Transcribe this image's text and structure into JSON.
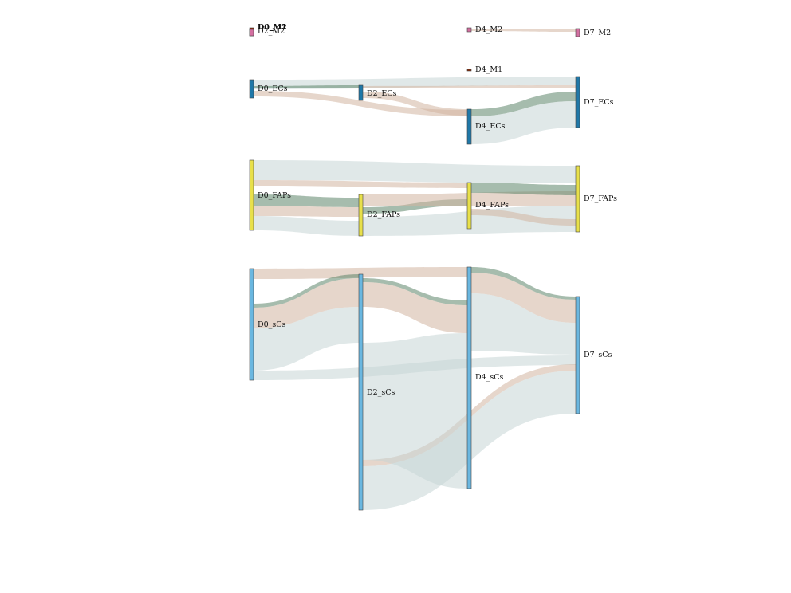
{
  "diagram": {
    "type": "sankey",
    "colors": {
      "M2": "#d46fa1",
      "M1": "#8b2500",
      "ECs": "#1f78a8",
      "FAPs": "#e8e04a",
      "sCs": "#6ab7e0",
      "flow_gray": "#c6d6d6",
      "flow_tan": "#d2b4a1",
      "flow_green": "#5d8569"
    },
    "nodes": [
      {
        "id": "D0_M1",
        "label": "D0_M1",
        "group": "M1"
      },
      {
        "id": "D0_M2",
        "label": "D0_M2",
        "group": "M2"
      },
      {
        "id": "D2_M2",
        "label": "D2_M2",
        "group": "M2"
      },
      {
        "id": "D4_M2",
        "label": "D4_M2",
        "group": "M2"
      },
      {
        "id": "D7_M2",
        "label": "D7_M2",
        "group": "M2"
      },
      {
        "id": "D4_M1",
        "label": "D4_M1",
        "group": "M1"
      },
      {
        "id": "D0_ECs",
        "label": "D0_ECs",
        "group": "ECs"
      },
      {
        "id": "D2_ECs",
        "label": "D2_ECs",
        "group": "ECs"
      },
      {
        "id": "D4_ECs",
        "label": "D4_ECs",
        "group": "ECs"
      },
      {
        "id": "D7_ECs",
        "label": "D7_ECs",
        "group": "ECs"
      },
      {
        "id": "D0_FAPs",
        "label": "D0_FAPs",
        "group": "FAPs"
      },
      {
        "id": "D2_FAPs",
        "label": "D2_FAPs",
        "group": "FAPs"
      },
      {
        "id": "D4_FAPs",
        "label": "D4_FAPs",
        "group": "FAPs"
      },
      {
        "id": "D7_FAPs",
        "label": "D7_FAPs",
        "group": "FAPs"
      },
      {
        "id": "D0_sCs",
        "label": "D0_sCs",
        "group": "sCs"
      },
      {
        "id": "D2_sCs",
        "label": "D2_sCs",
        "group": "sCs"
      },
      {
        "id": "D4_sCs",
        "label": "D4_sCs",
        "group": "sCs"
      },
      {
        "id": "D7_sCs",
        "label": "D7_sCs",
        "group": "sCs"
      }
    ],
    "flows": [
      {
        "source": "D4_M2",
        "target": "D7_M2",
        "kind": "tan"
      },
      {
        "source": "D0_ECs",
        "target": "D7_ECs",
        "kind": "gray"
      },
      {
        "source": "D0_ECs",
        "target": "D2_ECs",
        "kind": "green"
      },
      {
        "source": "D0_ECs",
        "target": "D4_ECs",
        "kind": "tan"
      },
      {
        "source": "D2_ECs",
        "target": "D7_ECs",
        "kind": "tan"
      },
      {
        "source": "D2_ECs",
        "target": "D4_ECs",
        "kind": "tan"
      },
      {
        "source": "D4_ECs",
        "target": "D7_ECs",
        "kind": "green"
      },
      {
        "source": "D4_ECs",
        "target": "D7_ECs",
        "kind": "gray"
      },
      {
        "source": "D0_FAPs",
        "target": "D7_FAPs",
        "kind": "gray"
      },
      {
        "source": "D0_FAPs",
        "target": "D4_FAPs",
        "kind": "tan"
      },
      {
        "source": "D0_FAPs",
        "target": "D2_FAPs",
        "kind": "green"
      },
      {
        "source": "D0_FAPs",
        "target": "D2_FAPs",
        "kind": "tan"
      },
      {
        "source": "D0_FAPs",
        "target": "D2_FAPs",
        "kind": "gray"
      },
      {
        "source": "D2_FAPs",
        "target": "D4_FAPs",
        "kind": "green"
      },
      {
        "source": "D2_FAPs",
        "target": "D7_FAPs",
        "kind": "tan"
      },
      {
        "source": "D2_FAPs",
        "target": "D7_FAPs",
        "kind": "gray"
      },
      {
        "source": "D4_FAPs",
        "target": "D7_FAPs",
        "kind": "green"
      },
      {
        "source": "D4_FAPs",
        "target": "D7_FAPs",
        "kind": "tan"
      },
      {
        "source": "D0_sCs",
        "target": "D4_sCs",
        "kind": "tan"
      },
      {
        "source": "D0_sCs",
        "target": "D2_sCs",
        "kind": "green"
      },
      {
        "source": "D0_sCs",
        "target": "D2_sCs",
        "kind": "tan"
      },
      {
        "source": "D0_sCs",
        "target": "D2_sCs",
        "kind": "gray"
      },
      {
        "source": "D0_sCs",
        "target": "D7_sCs",
        "kind": "gray"
      },
      {
        "source": "D2_sCs",
        "target": "D4_sCs",
        "kind": "green"
      },
      {
        "source": "D2_sCs",
        "target": "D4_sCs",
        "kind": "tan"
      },
      {
        "source": "D2_sCs",
        "target": "D7_sCs",
        "kind": "tan"
      },
      {
        "source": "D2_sCs",
        "target": "D4_sCs",
        "kind": "gray"
      },
      {
        "source": "D2_sCs",
        "target": "D7_sCs",
        "kind": "gray"
      },
      {
        "source": "D4_sCs",
        "target": "D7_sCs",
        "kind": "green"
      },
      {
        "source": "D4_sCs",
        "target": "D7_sCs",
        "kind": "tan"
      },
      {
        "source": "D4_sCs",
        "target": "D7_sCs",
        "kind": "gray"
      }
    ]
  }
}
